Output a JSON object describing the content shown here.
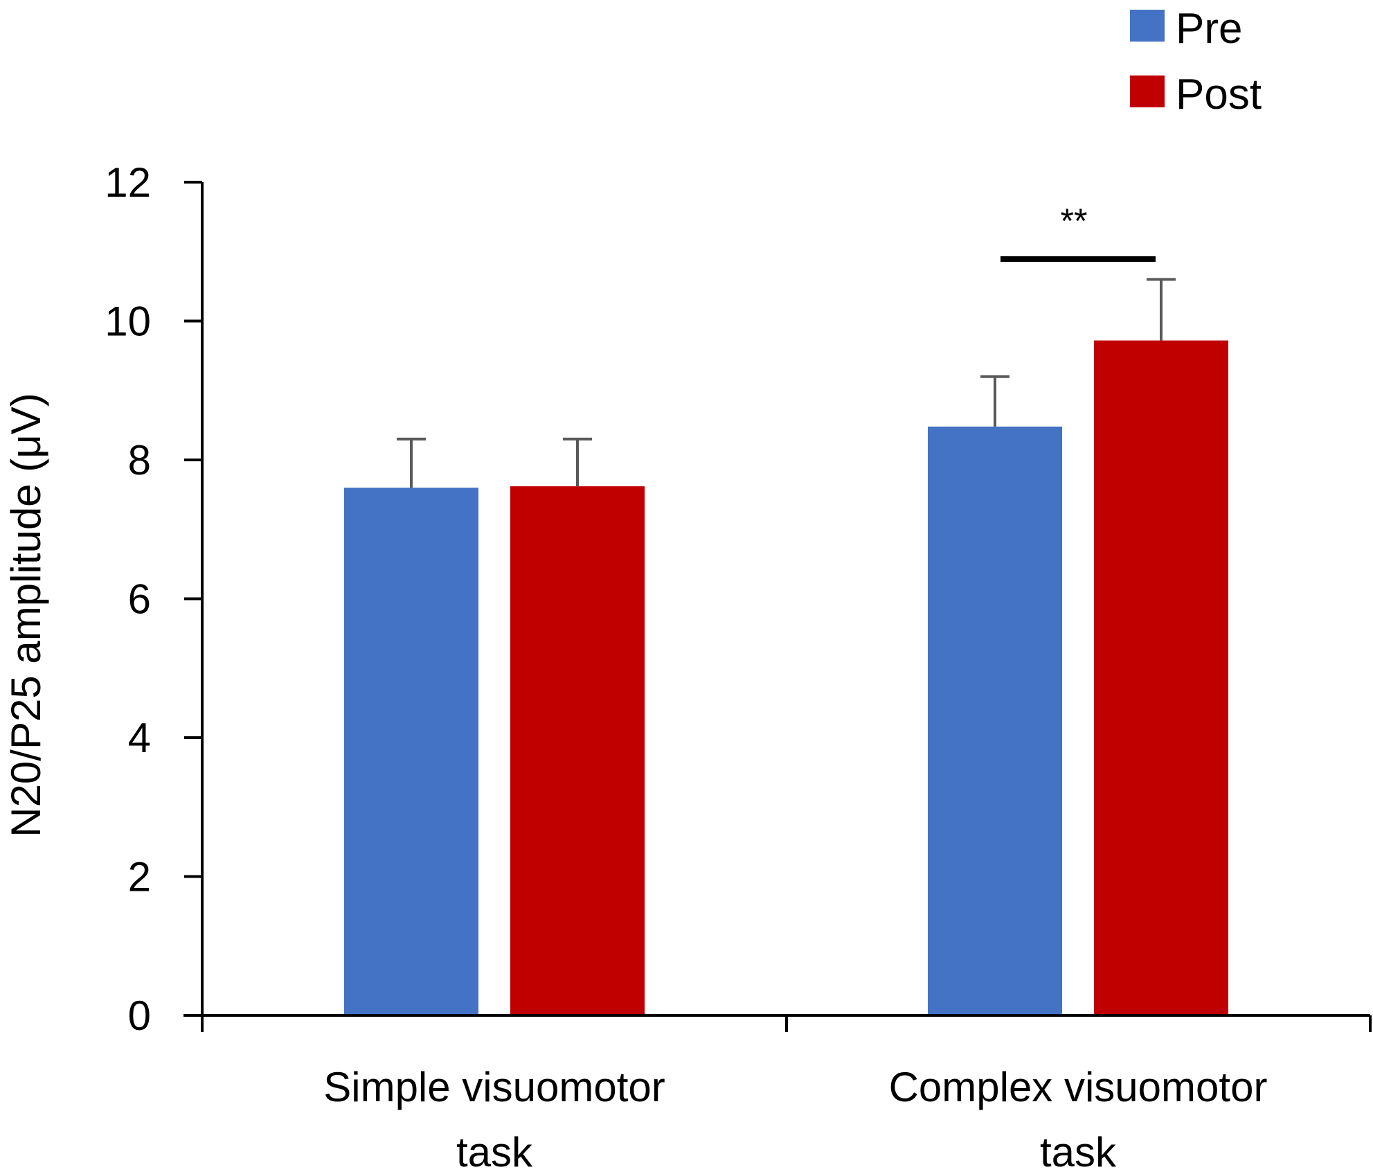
{
  "chart_data": {
    "type": "bar",
    "title": "",
    "xlabel": "",
    "ylabel": "N20/P25 amplitude (μV)",
    "ylim": [
      0,
      12
    ],
    "yticks": [
      0,
      2,
      4,
      6,
      8,
      10,
      12
    ],
    "categories": [
      "Simple visuomotor task",
      "Complex visuomotor task"
    ],
    "category_lines": [
      [
        "Simple visuomotor",
        "task"
      ],
      [
        "Complex visuomotor",
        "task"
      ]
    ],
    "series": [
      {
        "name": "Pre",
        "color": "#4472C4",
        "values": [
          7.6,
          8.48
        ],
        "errors": [
          0.7,
          0.72
        ]
      },
      {
        "name": "Post",
        "color": "#C00000",
        "values": [
          7.62,
          9.72
        ],
        "errors": [
          0.68,
          0.88
        ]
      }
    ],
    "legend_position": "top-right",
    "significance": [
      {
        "category": 1,
        "label": "**"
      }
    ],
    "error_bar_color": "#595959"
  }
}
